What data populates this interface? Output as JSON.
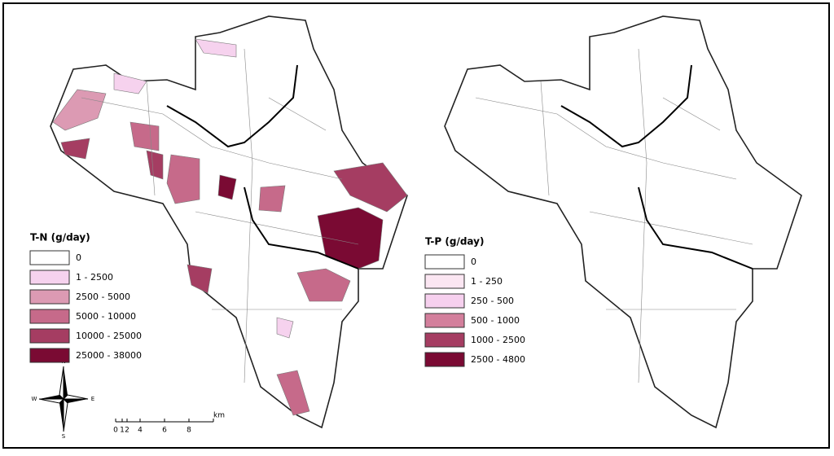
{
  "maps": [
    {
      "legend": {
        "title": "T-N (g/day)",
        "items": [
          {
            "label": "0",
            "color": "#ffffff"
          },
          {
            "label": "1 - 2500",
            "color": "#f6d2ee"
          },
          {
            "label": "2500 - 5000",
            "color": "#dc9ab3"
          },
          {
            "label": "5000 - 10000",
            "color": "#c66a8a"
          },
          {
            "label": "10000 - 25000",
            "color": "#a53d62"
          },
          {
            "label": "25000 - 38000",
            "color": "#7a0a33"
          }
        ]
      }
    },
    {
      "legend": {
        "title": "T-P (g/day)",
        "items": [
          {
            "label": "0",
            "color": "#ffffff"
          },
          {
            "label": "1 - 250",
            "color": "#fbe6f2"
          },
          {
            "label": "250 - 500",
            "color": "#f6d0ee"
          },
          {
            "label": "500 - 1000",
            "color": "#d37f9c"
          },
          {
            "label": "1000 - 2500",
            "color": "#a53d62"
          },
          {
            "label": "2500 - 4800",
            "color": "#7a0a33"
          }
        ]
      }
    }
  ],
  "compass": {
    "n": "N",
    "e": "E",
    "s": "S",
    "w": "W"
  },
  "scale": {
    "ticks": [
      "0",
      "1",
      "2",
      "4",
      "6",
      "8"
    ],
    "unit": "km"
  }
}
